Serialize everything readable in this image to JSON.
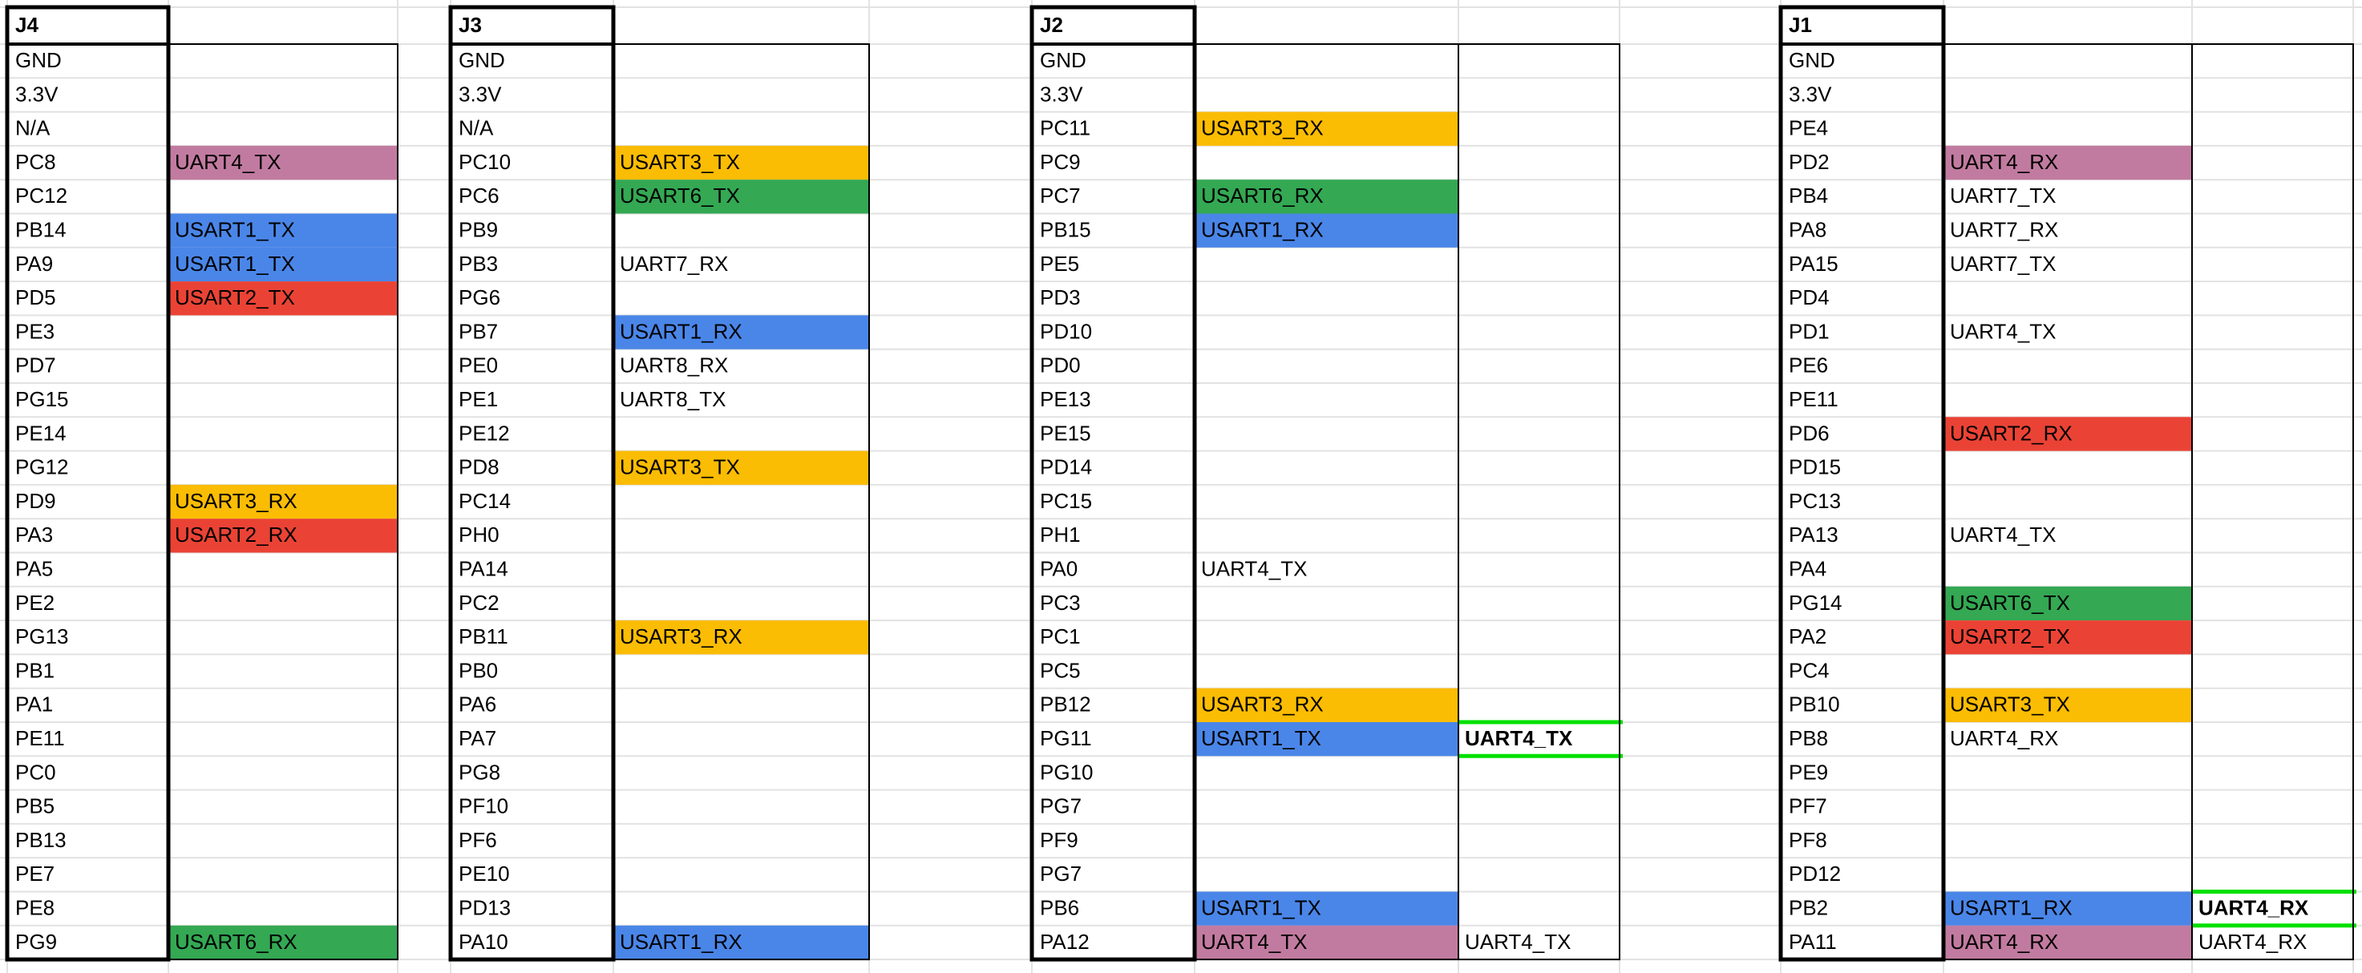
{
  "blocks": [
    {
      "header": "J4",
      "rows": [
        {
          "pin": "GND"
        },
        {
          "pin": "3.3V"
        },
        {
          "pin": "N/A"
        },
        {
          "pin": "PC8",
          "fn": {
            "text": "UART4_TX",
            "fill": "#c27ba0"
          }
        },
        {
          "pin": "PC12"
        },
        {
          "pin": "PB14",
          "fn": {
            "text": "USART1_TX",
            "fill": "#4a86e8"
          }
        },
        {
          "pin": "PA9",
          "fn": {
            "text": "USART1_TX",
            "fill": "#4a86e8"
          }
        },
        {
          "pin": "PD5",
          "fn": {
            "text": "USART2_TX",
            "fill": "#ea4335"
          }
        },
        {
          "pin": "PE3"
        },
        {
          "pin": "PD7"
        },
        {
          "pin": "PG15"
        },
        {
          "pin": "PE14"
        },
        {
          "pin": "PG12"
        },
        {
          "pin": "PD9",
          "fn": {
            "text": "USART3_RX",
            "fill": "#fbbc04"
          }
        },
        {
          "pin": "PA3",
          "fn": {
            "text": "USART2_RX",
            "fill": "#ea4335"
          }
        },
        {
          "pin": "PA5"
        },
        {
          "pin": "PE2"
        },
        {
          "pin": "PG13"
        },
        {
          "pin": "PB1"
        },
        {
          "pin": "PA1"
        },
        {
          "pin": "PE11"
        },
        {
          "pin": "PC0"
        },
        {
          "pin": "PB5"
        },
        {
          "pin": "PB13"
        },
        {
          "pin": "PE7"
        },
        {
          "pin": "PE8"
        },
        {
          "pin": "PG9",
          "fn": {
            "text": "USART6_RX",
            "fill": "#34a853"
          }
        }
      ]
    },
    {
      "header": "J3",
      "rows": [
        {
          "pin": "GND"
        },
        {
          "pin": "3.3V"
        },
        {
          "pin": "N/A"
        },
        {
          "pin": "PC10",
          "fn": {
            "text": "USART3_TX",
            "fill": "#fbbc04"
          }
        },
        {
          "pin": "PC6",
          "fn": {
            "text": "USART6_TX",
            "fill": "#34a853"
          }
        },
        {
          "pin": "PB9"
        },
        {
          "pin": "PB3",
          "fn": {
            "text": "UART7_RX"
          }
        },
        {
          "pin": "PG6"
        },
        {
          "pin": "PB7",
          "fn": {
            "text": "USART1_RX",
            "fill": "#4a86e8"
          }
        },
        {
          "pin": "PE0",
          "fn": {
            "text": "UART8_RX"
          }
        },
        {
          "pin": "PE1",
          "fn": {
            "text": "UART8_TX"
          }
        },
        {
          "pin": "PE12"
        },
        {
          "pin": "PD8",
          "fn": {
            "text": "USART3_TX",
            "fill": "#fbbc04"
          }
        },
        {
          "pin": "PC14"
        },
        {
          "pin": "PH0"
        },
        {
          "pin": "PA14"
        },
        {
          "pin": "PC2"
        },
        {
          "pin": "PB11",
          "fn": {
            "text": "USART3_RX",
            "fill": "#fbbc04"
          }
        },
        {
          "pin": "PB0"
        },
        {
          "pin": "PA6"
        },
        {
          "pin": "PA7"
        },
        {
          "pin": "PG8"
        },
        {
          "pin": "PF10"
        },
        {
          "pin": "PF6"
        },
        {
          "pin": "PE10"
        },
        {
          "pin": "PD13"
        },
        {
          "pin": "PA10",
          "fn": {
            "text": "USART1_RX",
            "fill": "#4a86e8"
          }
        }
      ]
    },
    {
      "header": "J2",
      "rows": [
        {
          "pin": "GND"
        },
        {
          "pin": "3.3V"
        },
        {
          "pin": "PC11",
          "fn": {
            "text": "USART3_RX",
            "fill": "#fbbc04"
          }
        },
        {
          "pin": "PC9"
        },
        {
          "pin": "PC7",
          "fn": {
            "text": "USART6_RX",
            "fill": "#34a853"
          }
        },
        {
          "pin": "PB15",
          "fn": {
            "text": "USART1_RX",
            "fill": "#4a86e8"
          }
        },
        {
          "pin": "PE5"
        },
        {
          "pin": "PD3"
        },
        {
          "pin": "PD10"
        },
        {
          "pin": "PD0"
        },
        {
          "pin": "PE13"
        },
        {
          "pin": "PE15"
        },
        {
          "pin": "PD14"
        },
        {
          "pin": "PC15"
        },
        {
          "pin": "PH1"
        },
        {
          "pin": "PA0",
          "fn": {
            "text": "UART4_TX"
          }
        },
        {
          "pin": "PC3"
        },
        {
          "pin": "PC1"
        },
        {
          "pin": "PC5"
        },
        {
          "pin": "PB12",
          "fn": {
            "text": "USART3_RX",
            "fill": "#fbbc04"
          }
        },
        {
          "pin": "PG11",
          "fn": {
            "text": "USART1_TX",
            "fill": "#4a86e8"
          },
          "fn2": {
            "text": "UART4_TX",
            "bold": true,
            "outline": "#00e000"
          }
        },
        {
          "pin": "PG10"
        },
        {
          "pin": "PG7"
        },
        {
          "pin": "PF9"
        },
        {
          "pin": "PG7"
        },
        {
          "pin": "PB6",
          "fn": {
            "text": "USART1_TX",
            "fill": "#4a86e8"
          }
        },
        {
          "pin": "PA12",
          "fn": {
            "text": "UART4_TX",
            "fill": "#c27ba0"
          },
          "fn2": {
            "text": "UART4_TX"
          }
        }
      ]
    },
    {
      "header": "J1",
      "rows": [
        {
          "pin": "GND"
        },
        {
          "pin": "3.3V"
        },
        {
          "pin": "PE4"
        },
        {
          "pin": "PD2",
          "fn": {
            "text": "UART4_RX",
            "fill": "#c27ba0"
          }
        },
        {
          "pin": "PB4",
          "fn": {
            "text": "UART7_TX"
          }
        },
        {
          "pin": "PA8",
          "fn": {
            "text": "UART7_RX"
          }
        },
        {
          "pin": "PA15",
          "fn": {
            "text": "UART7_TX"
          }
        },
        {
          "pin": "PD4"
        },
        {
          "pin": "PD1",
          "fn": {
            "text": "UART4_TX"
          }
        },
        {
          "pin": "PE6"
        },
        {
          "pin": "PE11"
        },
        {
          "pin": "PD6",
          "fn": {
            "text": "USART2_RX",
            "fill": "#ea4335"
          }
        },
        {
          "pin": "PD15"
        },
        {
          "pin": "PC13"
        },
        {
          "pin": "PA13",
          "fn": {
            "text": "UART4_TX"
          }
        },
        {
          "pin": "PA4"
        },
        {
          "pin": "PG14",
          "fn": {
            "text": "USART6_TX",
            "fill": "#34a853"
          }
        },
        {
          "pin": "PA2",
          "fn": {
            "text": "USART2_TX",
            "fill": "#ea4335"
          }
        },
        {
          "pin": "PC4"
        },
        {
          "pin": "PB10",
          "fn": {
            "text": "USART3_TX",
            "fill": "#fbbc04"
          }
        },
        {
          "pin": "PB8",
          "fn": {
            "text": "UART4_RX"
          }
        },
        {
          "pin": "PE9"
        },
        {
          "pin": "PF7"
        },
        {
          "pin": "PF8"
        },
        {
          "pin": "PD12"
        },
        {
          "pin": "PB2",
          "fn": {
            "text": "USART1_RX",
            "fill": "#4a86e8"
          },
          "fn2": {
            "text": "UART4_RX",
            "bold": true,
            "outline": "#00e000"
          }
        },
        {
          "pin": "PA11",
          "fn": {
            "text": "UART4_RX",
            "fill": "#c27ba0"
          },
          "fn2": {
            "text": "UART4_RX"
          }
        }
      ]
    }
  ]
}
